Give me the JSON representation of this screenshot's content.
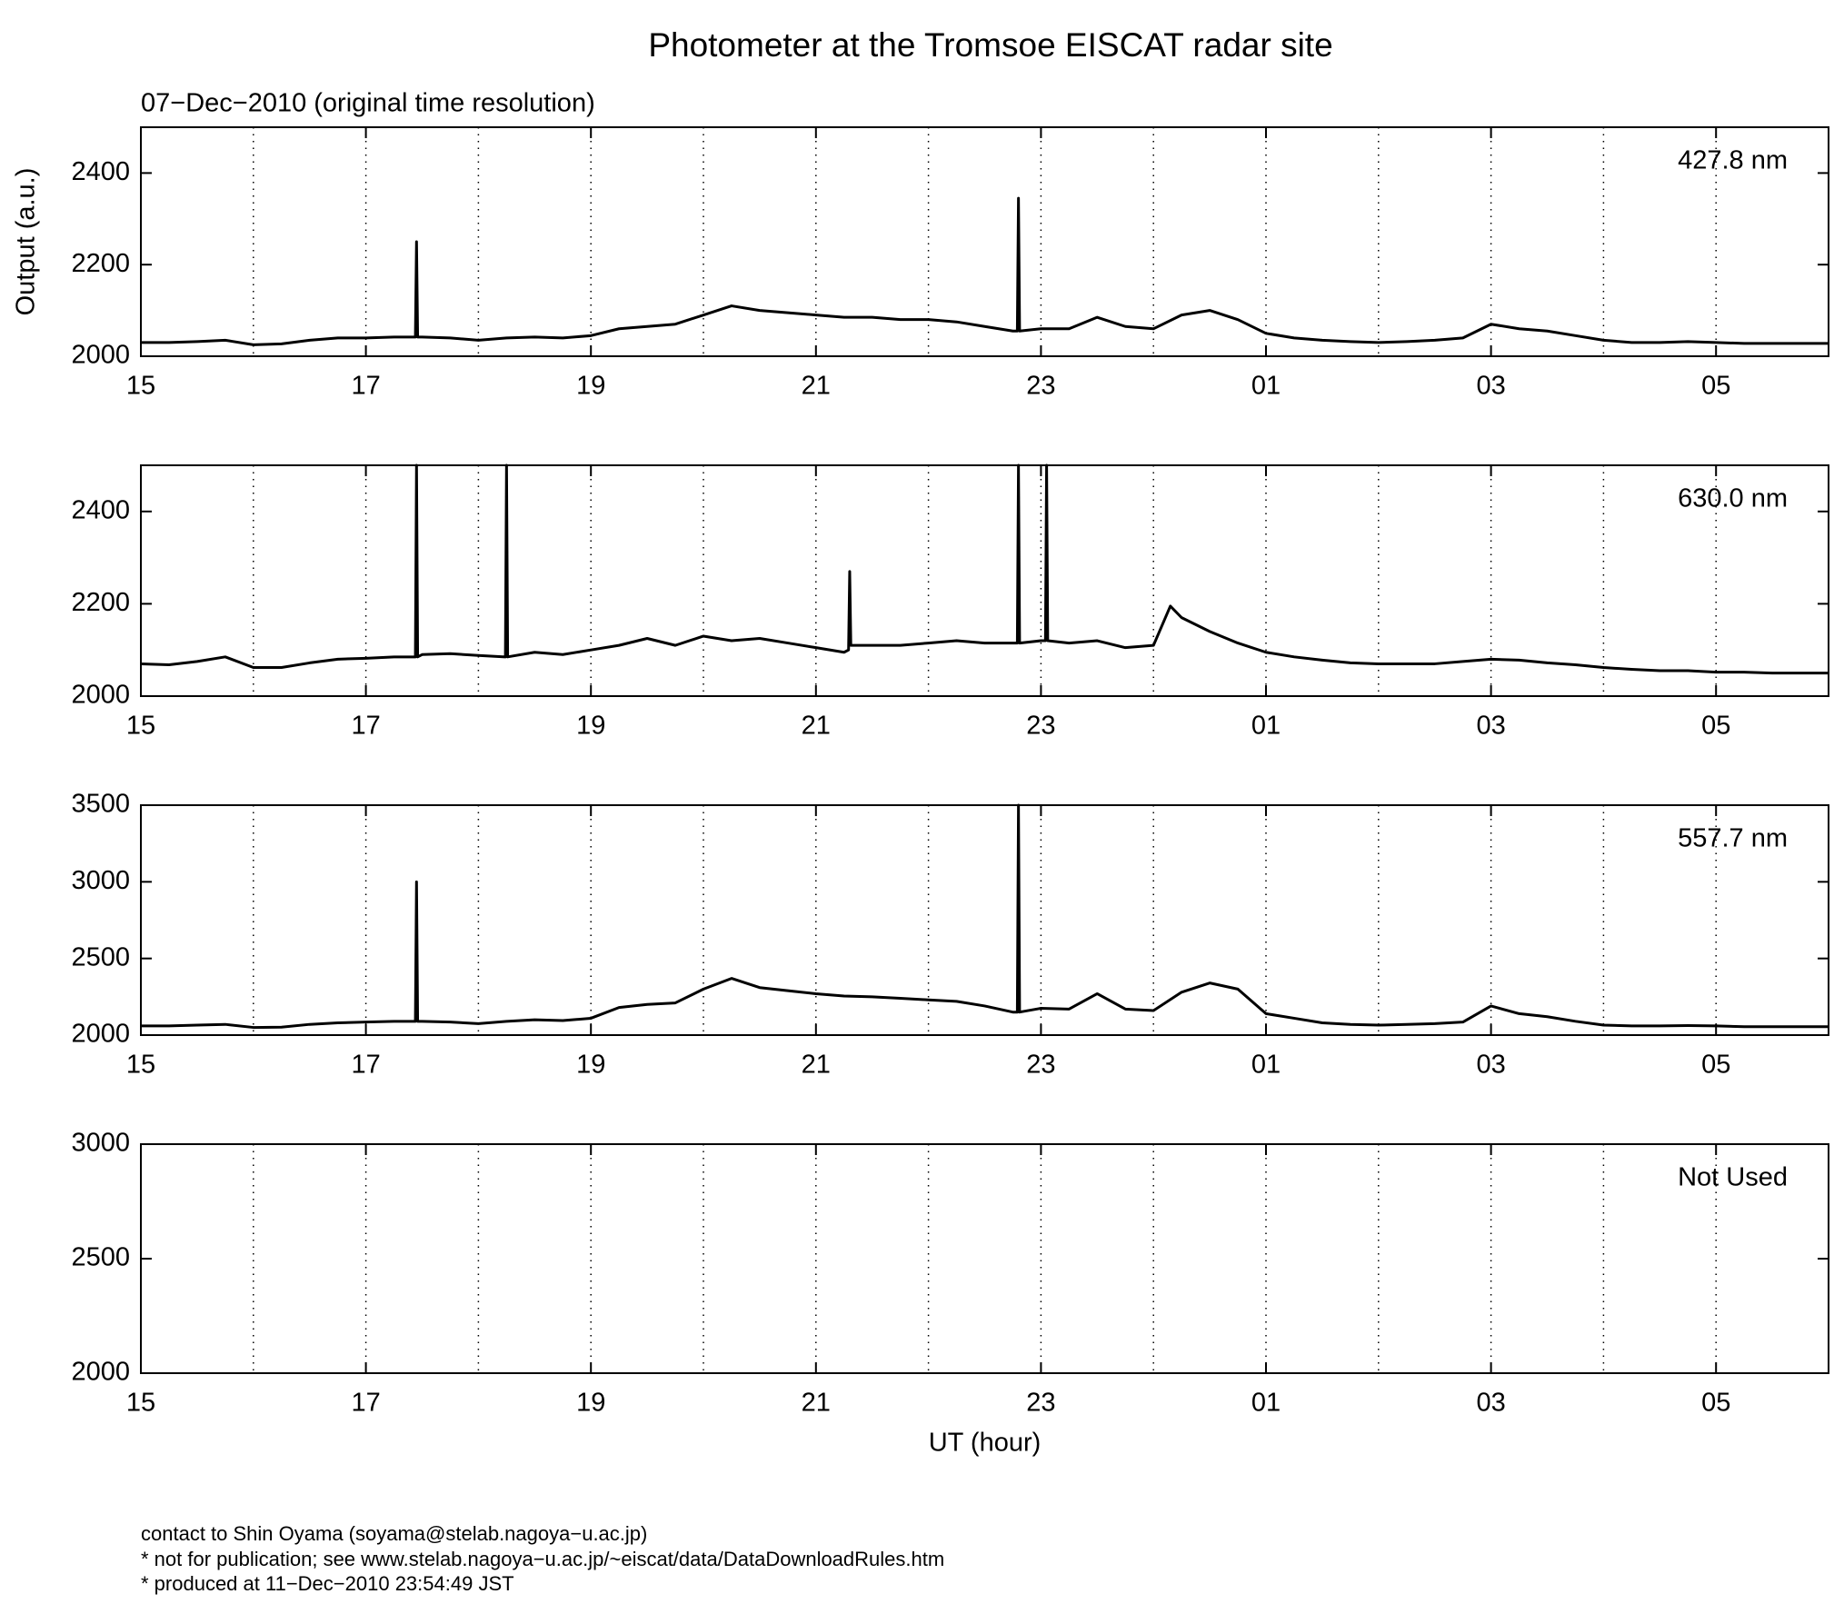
{
  "title": "Photometer at the Tromsoe EISCAT radar site",
  "subtitle": "07−Dec−2010 (original time resolution)",
  "footer": [
    "contact to Shin Oyama (soyama@stelab.nagoya−u.ac.jp)",
    "* not for publication; see www.stelab.nagoya−u.ac.jp/~eiscat/data/DataDownloadRules.htm",
    "* produced at 11−Dec−2010 23:54:49 JST"
  ],
  "chart_data": [
    {
      "type": "line",
      "label": "427.8 nm",
      "ylabel": "Output (a.u.)",
      "xlim": [
        15,
        30
      ],
      "xticks": [
        15,
        17,
        19,
        21,
        23,
        {
          "value": 25,
          "label": "01"
        },
        {
          "value": 27,
          "label": "03"
        },
        {
          "value": 29,
          "label": "05"
        }
      ],
      "x_minor_ticks": [
        16,
        18,
        20,
        22,
        24,
        26,
        28
      ],
      "grid": true,
      "ylim": [
        2000,
        2500
      ],
      "yticks": [
        2000,
        2200,
        2400
      ],
      "x": [
        15,
        15.25,
        15.5,
        15.75,
        16,
        16.25,
        16.5,
        16.75,
        17,
        17.25,
        17.44,
        17.45,
        17.46,
        17.5,
        17.75,
        18,
        18.25,
        18.5,
        18.75,
        19,
        19.25,
        19.5,
        19.75,
        20,
        20.25,
        20.5,
        20.75,
        21,
        21.25,
        21.5,
        21.75,
        22,
        22.25,
        22.5,
        22.75,
        22.79,
        22.8,
        22.81,
        23,
        23.25,
        23.5,
        23.75,
        24,
        24.25,
        24.5,
        24.75,
        25,
        25.25,
        25.5,
        25.75,
        26,
        26.25,
        26.5,
        26.75,
        27,
        27.25,
        27.5,
        27.75,
        28,
        28.25,
        28.5,
        28.75,
        29,
        29.25,
        29.5,
        29.75,
        30
      ],
      "series": [
        {
          "color": "#000000",
          "values": [
            2030,
            2030,
            2032,
            2035,
            2025,
            2027,
            2035,
            2040,
            2040,
            2042,
            2042,
            2250,
            2042,
            2042,
            2040,
            2035,
            2040,
            2042,
            2040,
            2045,
            2060,
            2065,
            2070,
            2090,
            2110,
            2100,
            2095,
            2090,
            2085,
            2085,
            2080,
            2080,
            2075,
            2065,
            2055,
            2055,
            2345,
            2055,
            2060,
            2060,
            2085,
            2065,
            2060,
            2090,
            2100,
            2080,
            2050,
            2040,
            2035,
            2032,
            2030,
            2032,
            2035,
            2040,
            2070,
            2060,
            2055,
            2045,
            2035,
            2030,
            2030,
            2032,
            2030,
            2028,
            2028,
            2028,
            2028
          ]
        }
      ]
    },
    {
      "type": "line",
      "label": "630.0 nm",
      "xlim": [
        15,
        30
      ],
      "xticks": [
        15,
        17,
        19,
        21,
        23,
        {
          "value": 25,
          "label": "01"
        },
        {
          "value": 27,
          "label": "03"
        },
        {
          "value": 29,
          "label": "05"
        }
      ],
      "x_minor_ticks": [
        16,
        18,
        20,
        22,
        24,
        26,
        28
      ],
      "grid": true,
      "ylim": [
        2000,
        2500
      ],
      "yticks": [
        2000,
        2200,
        2400
      ],
      "x": [
        15,
        15.25,
        15.5,
        15.75,
        16,
        16.25,
        16.5,
        16.75,
        17,
        17.25,
        17.44,
        17.45,
        17.46,
        17.5,
        17.75,
        18,
        18.24,
        18.25,
        18.26,
        18.5,
        18.75,
        19,
        19.25,
        19.5,
        19.75,
        20,
        20.25,
        20.5,
        20.75,
        21,
        21.25,
        21.29,
        21.3,
        21.31,
        21.5,
        21.75,
        22,
        22.25,
        22.5,
        22.75,
        22.79,
        22.8,
        22.81,
        23,
        23.04,
        23.05,
        23.06,
        23.25,
        23.5,
        23.75,
        24,
        24.15,
        24.25,
        24.5,
        24.75,
        25,
        25.25,
        25.5,
        25.75,
        26,
        26.25,
        26.5,
        26.75,
        27,
        27.25,
        27.5,
        27.75,
        28,
        28.25,
        28.5,
        28.75,
        29,
        29.25,
        29.5,
        29.75,
        30
      ],
      "series": [
        {
          "color": "#000000",
          "values": [
            2070,
            2068,
            2075,
            2085,
            2062,
            2062,
            2072,
            2080,
            2082,
            2085,
            2085,
            2500,
            2085,
            2090,
            2092,
            2088,
            2085,
            2500,
            2085,
            2095,
            2090,
            2100,
            2110,
            2125,
            2110,
            2130,
            2120,
            2125,
            2115,
            2105,
            2095,
            2100,
            2270,
            2110,
            2110,
            2110,
            2115,
            2120,
            2115,
            2115,
            2115,
            2500,
            2115,
            2120,
            2120,
            2500,
            2120,
            2115,
            2120,
            2105,
            2110,
            2195,
            2170,
            2140,
            2115,
            2095,
            2085,
            2078,
            2072,
            2070,
            2070,
            2070,
            2075,
            2080,
            2078,
            2072,
            2068,
            2062,
            2058,
            2055,
            2055,
            2052,
            2052,
            2050,
            2050,
            2050
          ]
        }
      ]
    },
    {
      "type": "line",
      "label": "557.7 nm",
      "xlim": [
        15,
        30
      ],
      "xticks": [
        15,
        17,
        19,
        21,
        23,
        {
          "value": 25,
          "label": "01"
        },
        {
          "value": 27,
          "label": "03"
        },
        {
          "value": 29,
          "label": "05"
        }
      ],
      "x_minor_ticks": [
        16,
        18,
        20,
        22,
        24,
        26,
        28
      ],
      "grid": true,
      "ylim": [
        2000,
        3500
      ],
      "yticks": [
        2000,
        2500,
        3000,
        3500
      ],
      "x": [
        15,
        15.25,
        15.5,
        15.75,
        16,
        16.25,
        16.5,
        16.75,
        17,
        17.25,
        17.44,
        17.45,
        17.46,
        17.5,
        17.75,
        18,
        18.25,
        18.5,
        18.75,
        19,
        19.25,
        19.5,
        19.75,
        20,
        20.25,
        20.5,
        20.75,
        21,
        21.25,
        21.5,
        21.75,
        22,
        22.25,
        22.5,
        22.75,
        22.79,
        22.8,
        22.81,
        23,
        23.25,
        23.5,
        23.75,
        24,
        24.25,
        24.5,
        24.75,
        25,
        25.25,
        25.5,
        25.75,
        26,
        26.25,
        26.5,
        26.75,
        27,
        27.25,
        27.5,
        27.75,
        28,
        28.25,
        28.5,
        28.75,
        29,
        29.25,
        29.5,
        29.75,
        30
      ],
      "series": [
        {
          "color": "#000000",
          "values": [
            2060,
            2060,
            2065,
            2070,
            2050,
            2052,
            2070,
            2080,
            2085,
            2090,
            2090,
            3000,
            2090,
            2090,
            2085,
            2075,
            2090,
            2100,
            2095,
            2110,
            2180,
            2200,
            2210,
            2300,
            2370,
            2310,
            2290,
            2270,
            2255,
            2250,
            2240,
            2230,
            2220,
            2190,
            2150,
            2150,
            3500,
            2150,
            2175,
            2170,
            2270,
            2170,
            2160,
            2280,
            2340,
            2300,
            2140,
            2110,
            2080,
            2070,
            2065,
            2070,
            2075,
            2085,
            2190,
            2140,
            2120,
            2090,
            2065,
            2060,
            2060,
            2062,
            2060,
            2055,
            2055,
            2055,
            2055
          ]
        }
      ]
    },
    {
      "type": "line",
      "label": "Not Used",
      "xlabel": "UT (hour)",
      "xlim": [
        15,
        30
      ],
      "xticks": [
        15,
        17,
        19,
        21,
        23,
        {
          "value": 25,
          "label": "01"
        },
        {
          "value": 27,
          "label": "03"
        },
        {
          "value": 29,
          "label": "05"
        }
      ],
      "x_minor_ticks": [
        16,
        18,
        20,
        22,
        24,
        26,
        28
      ],
      "grid": true,
      "ylim": [
        2000,
        3000
      ],
      "yticks": [
        2000,
        2500,
        3000
      ],
      "x": [],
      "series": []
    }
  ]
}
